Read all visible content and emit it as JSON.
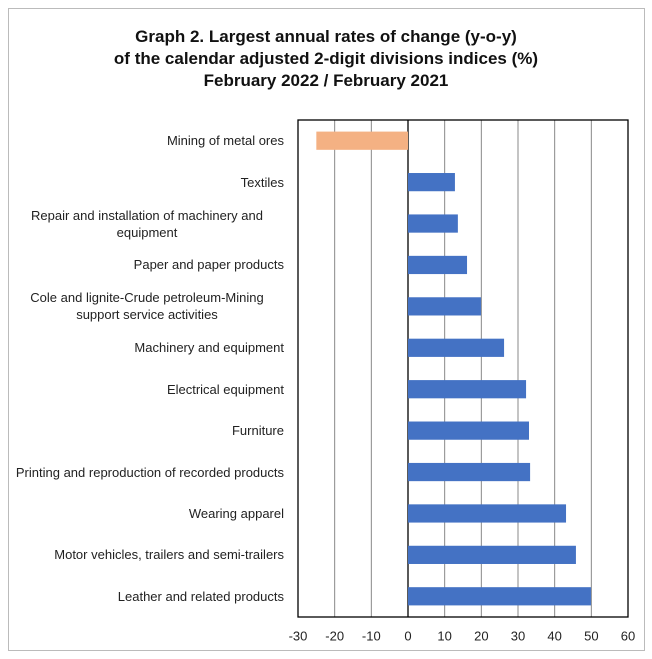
{
  "chart_data": {
    "type": "barh",
    "title": [
      "Graph 2. Largest annual rates of change (y-o-y)",
      "of the calendar adjusted 2-digit divisions indices (%)",
      "February 2022 / February 2021"
    ],
    "categories": [
      "Mining of metal ores",
      "Textiles",
      "Repair and installation of machinery and equipment",
      "Paper and paper products",
      "Cole and lignite-Crude petroleum-Mining support service activities",
      "Machinery and equipment",
      "Electrical equipment",
      "Furniture",
      "Printing and reproduction of recorded products",
      "Wearing apparel",
      "Motor vehicles, trailers and semi-trailers",
      "Leather and related products"
    ],
    "values": [
      -25,
      12.8,
      13.6,
      16.1,
      19.9,
      26.2,
      32.2,
      33.0,
      33.3,
      43.1,
      45.8,
      49.9
    ],
    "colors": [
      "#f4b183",
      "#4472c4",
      "#4472c4",
      "#4472c4",
      "#4472c4",
      "#4472c4",
      "#4472c4",
      "#4472c4",
      "#4472c4",
      "#4472c4",
      "#4472c4",
      "#4472c4"
    ],
    "xlim": [
      -30,
      60
    ],
    "xticks": [
      -30,
      -20,
      -10,
      0,
      10,
      20,
      30,
      40,
      50,
      60
    ],
    "grid": true
  }
}
